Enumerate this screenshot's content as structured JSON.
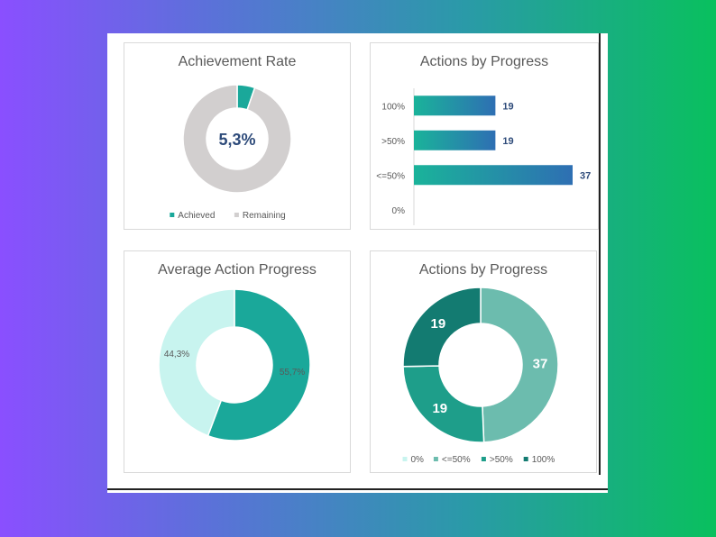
{
  "colors": {
    "teal": "#1aa89a",
    "teal_dark": "#137b71",
    "teal_mid": "#1e9e8a",
    "teal_light": "#6cbcae",
    "mint": "#c8f4ef",
    "grey": "#d2cfcf",
    "bar_start": "#1ab39a",
    "bar_end": "#2e6fb3",
    "value_blue": "#2e4b7a"
  },
  "chart_data": [
    {
      "type": "pie",
      "variant": "donut",
      "title": "Achievement Rate",
      "center_label": "5,3%",
      "slices": [
        {
          "name": "Achieved",
          "value": 5.3
        },
        {
          "name": "Remaining",
          "value": 94.7
        }
      ],
      "legend": [
        "Achieved",
        "Remaining"
      ],
      "legend_position": "bottom"
    },
    {
      "type": "bar",
      "orientation": "horizontal",
      "title": "Actions by Progress",
      "categories": [
        "100%",
        ">50%",
        "<=50%",
        "0%"
      ],
      "values": [
        19,
        19,
        37,
        0
      ],
      "data_labels": [
        "19",
        "19",
        "37",
        ""
      ]
    },
    {
      "type": "pie",
      "variant": "donut",
      "title": "Average Action Progress",
      "slices": [
        {
          "name": "",
          "value": 55.7,
          "label": "55,7%"
        },
        {
          "name": "",
          "value": 44.3,
          "label": "44,3%"
        }
      ]
    },
    {
      "type": "pie",
      "variant": "donut",
      "title": "Actions by Progress",
      "slices": [
        {
          "name": "0%",
          "value": 0,
          "label": ""
        },
        {
          "name": "<=50%",
          "value": 37,
          "label": "37"
        },
        {
          "name": ">50%",
          "value": 19,
          "label": "19"
        },
        {
          "name": "100%",
          "value": 19,
          "label": "19"
        }
      ],
      "legend": [
        "0%",
        "<=50%",
        ">50%",
        "100%"
      ],
      "legend_position": "bottom"
    }
  ]
}
